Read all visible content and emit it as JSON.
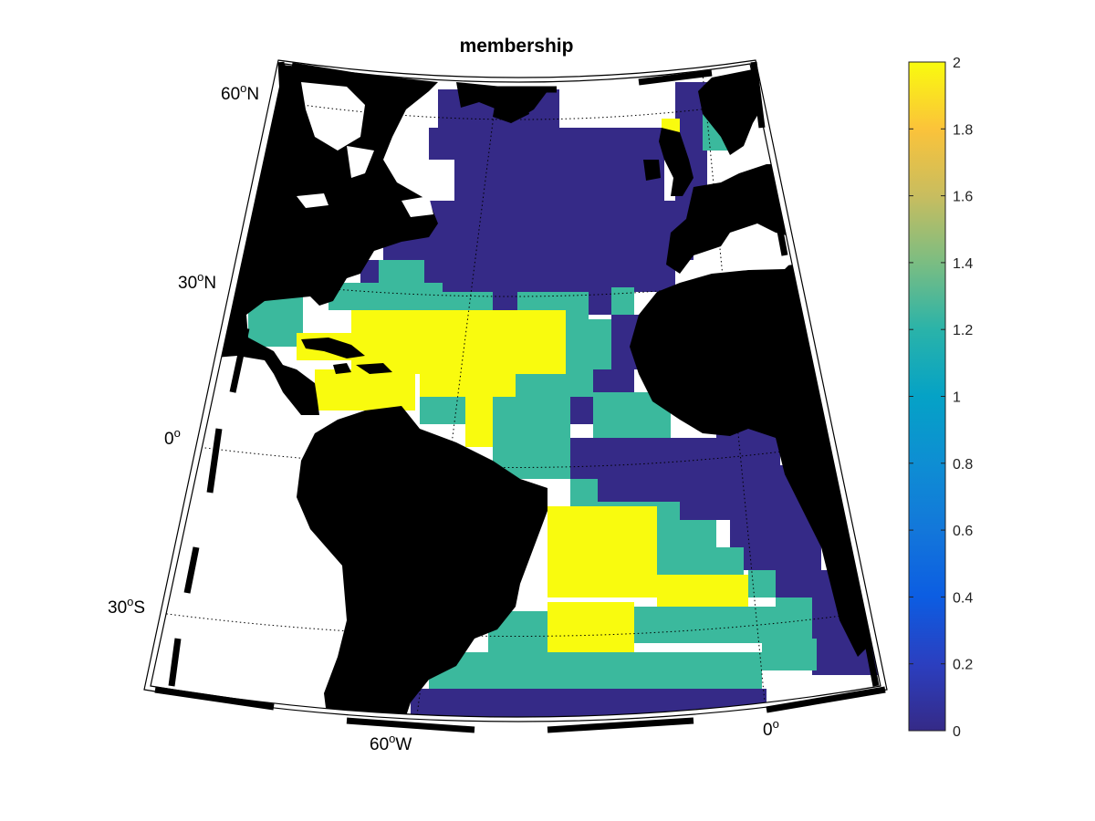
{
  "figure": {
    "title": "membership"
  },
  "map": {
    "projection": "conic",
    "lon_range": [
      -80,
      20
    ],
    "lat_range": [
      -45,
      65
    ],
    "graticule": "dotted",
    "land_color": "#000000",
    "missing_color": "#ffffff",
    "lat_labels": [
      {
        "base": "60",
        "sup": "o",
        "hemi": "N"
      },
      {
        "base": "30",
        "sup": "o",
        "hemi": "N"
      },
      {
        "base": "0",
        "sup": "o",
        "hemi": ""
      },
      {
        "base": "30",
        "sup": "o",
        "hemi": "S"
      }
    ],
    "lon_labels": [
      {
        "base": "60",
        "sup": "o",
        "hemi": "W"
      },
      {
        "base": "0",
        "sup": "o",
        "hemi": ""
      }
    ]
  },
  "colorbar": {
    "colormap": "parula",
    "range": [
      0,
      2
    ],
    "ticks": [
      "0",
      "0.2",
      "0.4",
      "0.6",
      "0.8",
      "1",
      "1.2",
      "1.4",
      "1.6",
      "1.8",
      "2"
    ]
  },
  "legend_colors": {
    "class_0": "#352a87",
    "class_1": "#3bb99d",
    "class_2": "#f9fb0e"
  }
}
